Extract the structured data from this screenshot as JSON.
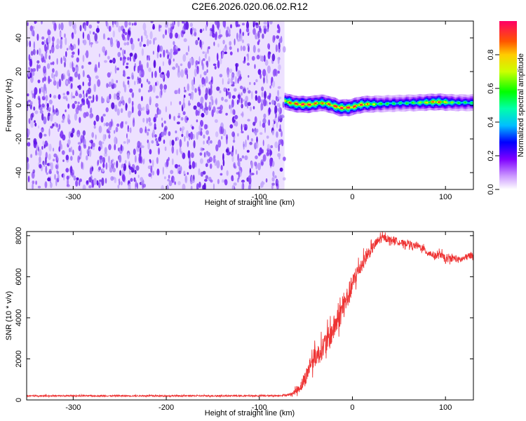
{
  "title": "C2E6.2026.020.06.02.R12",
  "colors": {
    "snr_line": "#ee3333",
    "spectrogram_noise": "#6a1ff0",
    "frame": "#000000",
    "background": "#ffffff"
  },
  "chart_data": [
    {
      "type": "heatmap",
      "xlabel": "Height of straight line (km)",
      "ylabel": "Frequency (Hz)",
      "xlim": [
        -350,
        130
      ],
      "ylim": [
        -50,
        50
      ],
      "x_ticks": [
        -300,
        -200,
        -100,
        0,
        100
      ],
      "x_tick_labels": [
        "-300",
        "-200",
        "-100",
        "0",
        "100"
      ],
      "y_ticks": [
        -40,
        -20,
        0,
        20,
        40
      ],
      "y_tick_labels": [
        "-40",
        "-20",
        "0",
        "20",
        "40"
      ],
      "noise_region_x": [
        -350,
        -73
      ],
      "signal_track": {
        "x": [
          -73,
          -65,
          -55,
          -45,
          -35,
          -25,
          -15,
          -5,
          10,
          30,
          50,
          70,
          90,
          110,
          130
        ],
        "frequency": [
          2.5,
          1.0,
          0.5,
          0.5,
          1.5,
          0.5,
          -1.5,
          -1.5,
          0.5,
          0.8,
          1.2,
          1.5,
          2.0,
          1.5,
          1.5
        ],
        "amplitude": [
          0.85,
          0.9,
          1.0,
          0.95,
          0.8,
          0.9,
          1.0,
          0.95,
          0.9,
          0.55,
          0.5,
          0.6,
          0.9,
          0.55,
          0.5
        ]
      },
      "colorbar": {
        "label": "Normalized spectral amplitude",
        "range": [
          0,
          1
        ],
        "ticks": [
          0.0,
          0.2,
          0.4,
          0.6,
          0.8
        ],
        "tick_labels": [
          "0.0",
          "0.2",
          "0.4",
          "0.6",
          "0.8"
        ]
      }
    },
    {
      "type": "line",
      "xlabel": "Height of straight line (km)",
      "ylabel": "SNR (10 * v/v)",
      "xlim": [
        -350,
        130
      ],
      "ylim": [
        0,
        8200
      ],
      "x_ticks": [
        -300,
        -200,
        -100,
        0,
        100
      ],
      "x_tick_labels": [
        "-300",
        "-200",
        "-100",
        "0",
        "100"
      ],
      "y_ticks": [
        0,
        2000,
        4000,
        6000,
        8000
      ],
      "y_tick_labels": [
        "0",
        "2000",
        "4000",
        "6000",
        "8000"
      ],
      "series": [
        {
          "x": [
            -350,
            -300,
            -250,
            -200,
            -150,
            -100,
            -80,
            -70,
            -65,
            -60,
            -55,
            -50,
            -45,
            -40,
            -35,
            -30,
            -25,
            -20,
            -15,
            -10,
            -5,
            0,
            5,
            10,
            15,
            20,
            25,
            30,
            35,
            40,
            45,
            50,
            55,
            60,
            65,
            70,
            75,
            80,
            85,
            90,
            95,
            100,
            105,
            110,
            115,
            120,
            125,
            130
          ],
          "values": [
            200,
            200,
            200,
            200,
            200,
            200,
            210,
            240,
            300,
            450,
            700,
            1100,
            1800,
            2100,
            2300,
            2700,
            3000,
            3500,
            4000,
            4500,
            5000,
            5600,
            6200,
            6600,
            7000,
            7300,
            7600,
            7850,
            7900,
            7800,
            7800,
            7700,
            7600,
            7650,
            7500,
            7500,
            7400,
            7200,
            7100,
            7000,
            7100,
            6800,
            6900,
            6900,
            6800,
            6900,
            7000,
            7100
          ],
          "noise_amplitude": [
            60,
            60,
            60,
            60,
            60,
            60,
            60,
            80,
            150,
            300,
            500,
            700,
            800,
            900,
            900,
            1000,
            1100,
            1100,
            1100,
            1100,
            1100,
            900,
            800,
            700,
            600,
            500,
            450,
            400,
            300,
            300,
            300,
            300,
            300,
            300,
            300,
            300,
            300,
            300,
            300,
            300,
            350,
            300,
            300,
            300,
            300,
            300,
            300,
            300
          ]
        }
      ]
    }
  ]
}
